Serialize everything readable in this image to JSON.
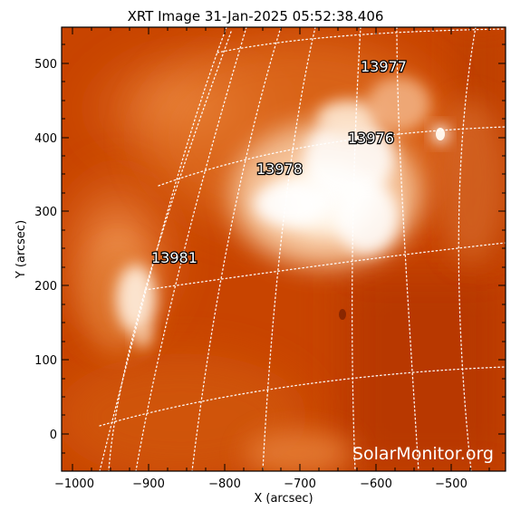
{
  "title": "XRT Image 31-Jan-2025 05:52:38.406",
  "axes": {
    "xlabel": "X (arcsec)",
    "ylabel": "Y (arcsec)",
    "xticks": [
      "−1000",
      "−900",
      "−800",
      "−700",
      "−600",
      "−500"
    ],
    "yticks": [
      "0",
      "100",
      "200",
      "300",
      "400",
      "500"
    ]
  },
  "regions": [
    {
      "id": "13977"
    },
    {
      "id": "13976"
    },
    {
      "id": "13978"
    },
    {
      "id": "13981"
    }
  ],
  "watermark": "SolarMonitor.org",
  "colors": {
    "background": "#c84400",
    "bright": "#fff4e8",
    "grid": "#ffffff",
    "text": "#000000"
  }
}
